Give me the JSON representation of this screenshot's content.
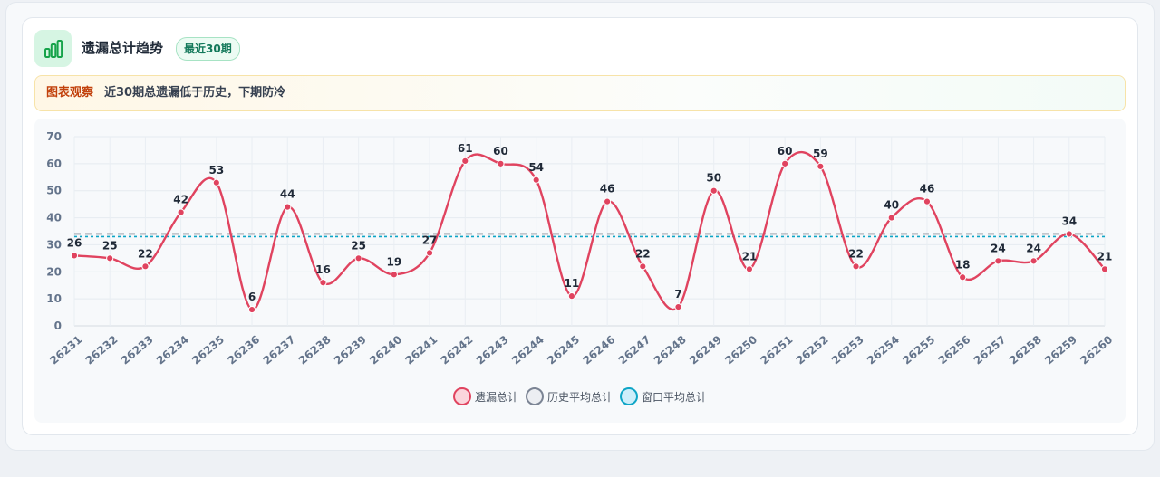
{
  "header": {
    "title": "遗漏总计趋势",
    "badge": "最近30期",
    "icon": "bar-chart-icon"
  },
  "insight": {
    "label": "图表观察",
    "text": "近30期总遗漏低于历史，下期防冷"
  },
  "colors": {
    "series": "#e0435f",
    "history_avg": "#6b7280",
    "window_avg": "#0ea5c6",
    "accent": "#16a34a"
  },
  "chart_data": {
    "type": "line",
    "categories": [
      "26231",
      "26232",
      "26233",
      "26234",
      "26235",
      "26236",
      "26237",
      "26238",
      "26239",
      "26240",
      "26241",
      "26242",
      "26243",
      "26244",
      "26245",
      "26246",
      "26247",
      "26248",
      "26249",
      "26250",
      "26251",
      "26252",
      "26253",
      "26254",
      "26255",
      "26256",
      "26257",
      "26258",
      "26259",
      "26260"
    ],
    "series": [
      {
        "name": "遗漏总计",
        "values": [
          26,
          25,
          22,
          42,
          53,
          6,
          44,
          16,
          25,
          19,
          27,
          61,
          60,
          54,
          11,
          46,
          22,
          7,
          50,
          21,
          60,
          59,
          22,
          40,
          46,
          18,
          24,
          24,
          34,
          21
        ]
      }
    ],
    "reference_lines": [
      {
        "name": "历史平均总计",
        "value": 34,
        "style": "dashed"
      },
      {
        "name": "窗口平均总计",
        "value": 33,
        "style": "dotted"
      }
    ],
    "ylim": [
      0,
      70
    ],
    "yticks": [
      0,
      10,
      20,
      30,
      40,
      50,
      60,
      70
    ],
    "grid": true,
    "legend": "bottom"
  }
}
